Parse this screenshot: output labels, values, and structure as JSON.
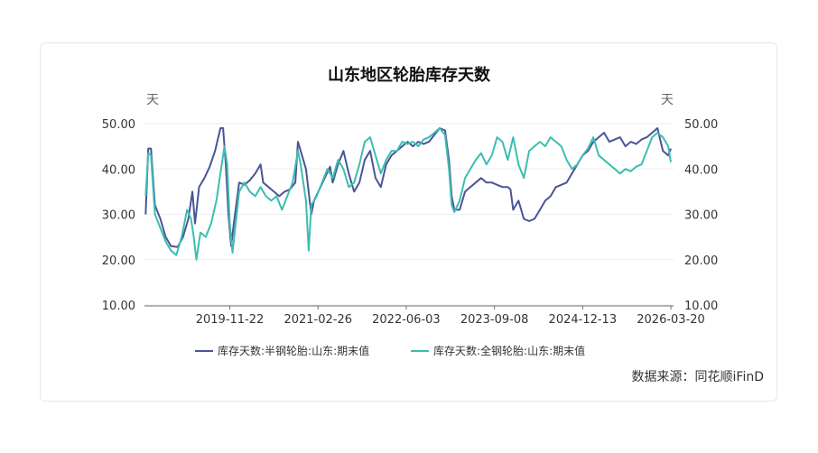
{
  "chart_data": {
    "type": "line",
    "title": "山东地区轮胎库存天数",
    "y_unit_left": "天",
    "y_unit_right": "天",
    "ylim": [
      10,
      50
    ],
    "yticks": [
      "50.00",
      "40.00",
      "30.00",
      "20.00",
      "10.00"
    ],
    "xticks": [
      "2019-11-22",
      "2021-02-26",
      "2022-06-03",
      "2023-09-08",
      "2024-12-13",
      "2026-03-20"
    ],
    "xlim": [
      "2018-09-01",
      "2026-04-03"
    ],
    "grid": true,
    "legend_position": "bottom",
    "source": "数据来源：同花顺iFinD",
    "series": [
      {
        "name": "库存天数:半钢轮胎:山东:期末值",
        "color": "#4a5596",
        "points": [
          [
            "2018-09-07",
            30
          ],
          [
            "2018-09-21",
            44.5
          ],
          [
            "2018-10-05",
            44.5
          ],
          [
            "2018-10-26",
            32
          ],
          [
            "2018-11-23",
            29
          ],
          [
            "2018-12-21",
            25
          ],
          [
            "2019-01-18",
            23
          ],
          [
            "2019-02-22",
            22.8
          ],
          [
            "2019-03-22",
            25
          ],
          [
            "2019-04-19",
            29
          ],
          [
            "2019-05-10",
            35
          ],
          [
            "2019-05-24",
            28
          ],
          [
            "2019-06-14",
            36
          ],
          [
            "2019-07-12",
            38
          ],
          [
            "2019-08-09",
            40.5
          ],
          [
            "2019-09-06",
            44
          ],
          [
            "2019-10-04",
            49
          ],
          [
            "2019-10-18",
            49
          ],
          [
            "2019-11-01",
            41
          ],
          [
            "2019-11-15",
            30
          ],
          [
            "2019-11-29",
            23
          ],
          [
            "2019-12-13",
            28
          ],
          [
            "2020-01-10",
            37
          ],
          [
            "2020-02-07",
            36.5
          ],
          [
            "2020-03-06",
            37.5
          ],
          [
            "2020-04-03",
            39
          ],
          [
            "2020-05-01",
            41
          ],
          [
            "2020-05-15",
            37
          ],
          [
            "2020-06-12",
            36
          ],
          [
            "2020-07-10",
            35
          ],
          [
            "2020-08-07",
            34
          ],
          [
            "2020-09-04",
            35
          ],
          [
            "2020-10-02",
            35.5
          ],
          [
            "2020-10-30",
            37
          ],
          [
            "2020-11-13",
            46
          ],
          [
            "2020-11-27",
            44
          ],
          [
            "2020-12-25",
            40
          ],
          [
            "2021-01-22",
            30
          ],
          [
            "2021-02-05",
            33
          ],
          [
            "2021-03-05",
            35.5
          ],
          [
            "2021-04-02",
            38
          ],
          [
            "2021-04-30",
            40.5
          ],
          [
            "2021-05-14",
            37
          ],
          [
            "2021-06-11",
            41
          ],
          [
            "2021-07-09",
            44
          ],
          [
            "2021-08-06",
            39
          ],
          [
            "2021-09-03",
            35
          ],
          [
            "2021-10-01",
            37
          ],
          [
            "2021-10-29",
            42
          ],
          [
            "2021-11-26",
            44
          ],
          [
            "2021-12-24",
            38
          ],
          [
            "2022-01-21",
            36
          ],
          [
            "2022-02-18",
            41
          ],
          [
            "2022-03-18",
            43
          ],
          [
            "2022-04-15",
            44
          ],
          [
            "2022-05-13",
            45
          ],
          [
            "2022-06-10",
            46
          ],
          [
            "2022-07-08",
            45
          ],
          [
            "2022-08-05",
            46
          ],
          [
            "2022-09-02",
            45.5
          ],
          [
            "2022-09-30",
            46
          ],
          [
            "2022-10-28",
            47.5
          ],
          [
            "2022-11-25",
            49
          ],
          [
            "2022-12-23",
            48.5
          ],
          [
            "2023-01-13",
            42
          ],
          [
            "2023-01-27",
            34
          ],
          [
            "2023-02-10",
            31
          ],
          [
            "2023-03-10",
            31
          ],
          [
            "2023-04-07",
            35
          ],
          [
            "2023-05-05",
            36
          ],
          [
            "2023-06-02",
            37
          ],
          [
            "2023-06-30",
            38
          ],
          [
            "2023-07-28",
            37
          ],
          [
            "2023-08-25",
            37
          ],
          [
            "2023-09-22",
            36.5
          ],
          [
            "2023-10-20",
            36
          ],
          [
            "2023-11-17",
            36
          ],
          [
            "2023-12-01",
            35.5
          ],
          [
            "2023-12-15",
            31
          ],
          [
            "2024-01-12",
            33
          ],
          [
            "2024-02-09",
            29
          ],
          [
            "2024-03-08",
            28.5
          ],
          [
            "2024-04-05",
            29
          ],
          [
            "2024-05-03",
            31
          ],
          [
            "2024-05-31",
            33
          ],
          [
            "2024-06-28",
            34
          ],
          [
            "2024-07-26",
            36
          ],
          [
            "2024-08-23",
            36.5
          ],
          [
            "2024-09-20",
            37
          ],
          [
            "2024-10-18",
            39
          ],
          [
            "2024-11-15",
            41
          ],
          [
            "2024-12-13",
            43
          ],
          [
            "2025-01-10",
            44
          ],
          [
            "2025-02-07",
            46
          ],
          [
            "2025-03-07",
            47
          ],
          [
            "2025-04-04",
            48
          ],
          [
            "2025-05-02",
            46
          ],
          [
            "2025-05-30",
            46.5
          ],
          [
            "2025-06-27",
            47
          ],
          [
            "2025-07-25",
            45
          ],
          [
            "2025-08-22",
            46
          ],
          [
            "2025-09-19",
            45.5
          ],
          [
            "2025-10-17",
            46.5
          ],
          [
            "2025-11-14",
            47
          ],
          [
            "2025-12-12",
            48
          ],
          [
            "2026-01-09",
            49
          ],
          [
            "2026-02-06",
            44
          ],
          [
            "2026-03-06",
            43
          ],
          [
            "2026-03-20",
            44.5
          ]
        ]
      },
      {
        "name": "库存天数:全钢轮胎:山东:期末值",
        "color": "#3dbdb1",
        "points": [
          [
            "2018-09-07",
            34
          ],
          [
            "2018-09-21",
            43.5
          ],
          [
            "2018-10-05",
            43
          ],
          [
            "2018-10-26",
            30
          ],
          [
            "2018-11-23",
            27
          ],
          [
            "2018-12-21",
            24
          ],
          [
            "2019-01-18",
            22
          ],
          [
            "2019-02-15",
            21
          ],
          [
            "2019-03-15",
            25
          ],
          [
            "2019-04-12",
            31
          ],
          [
            "2019-05-03",
            29
          ],
          [
            "2019-05-17",
            25
          ],
          [
            "2019-05-31",
            20
          ],
          [
            "2019-06-21",
            26
          ],
          [
            "2019-07-19",
            25
          ],
          [
            "2019-08-16",
            28
          ],
          [
            "2019-09-13",
            33
          ],
          [
            "2019-10-11",
            41
          ],
          [
            "2019-10-25",
            45
          ],
          [
            "2019-11-08",
            41
          ],
          [
            "2019-11-22",
            28
          ],
          [
            "2019-12-06",
            21.5
          ],
          [
            "2019-12-20",
            27
          ],
          [
            "2020-01-10",
            35
          ],
          [
            "2020-02-07",
            37
          ],
          [
            "2020-03-06",
            35
          ],
          [
            "2020-04-03",
            34
          ],
          [
            "2020-05-01",
            36
          ],
          [
            "2020-05-29",
            34
          ],
          [
            "2020-06-26",
            33
          ],
          [
            "2020-07-24",
            34
          ],
          [
            "2020-08-21",
            31
          ],
          [
            "2020-09-18",
            34
          ],
          [
            "2020-10-16",
            37
          ],
          [
            "2020-11-13",
            44
          ],
          [
            "2020-11-27",
            41
          ],
          [
            "2020-12-25",
            33
          ],
          [
            "2021-01-08",
            22
          ],
          [
            "2021-01-22",
            32
          ],
          [
            "2021-02-19",
            34
          ],
          [
            "2021-03-19",
            37
          ],
          [
            "2021-04-16",
            40
          ],
          [
            "2021-05-14",
            38
          ],
          [
            "2021-06-11",
            42
          ],
          [
            "2021-07-09",
            40
          ],
          [
            "2021-08-06",
            36
          ],
          [
            "2021-09-03",
            37
          ],
          [
            "2021-10-01",
            41
          ],
          [
            "2021-10-29",
            46
          ],
          [
            "2021-11-26",
            47
          ],
          [
            "2021-12-24",
            43
          ],
          [
            "2022-01-21",
            39
          ],
          [
            "2022-02-18",
            42
          ],
          [
            "2022-03-18",
            44
          ],
          [
            "2022-04-15",
            44
          ],
          [
            "2022-05-13",
            46
          ],
          [
            "2022-06-10",
            45.5
          ],
          [
            "2022-07-08",
            46
          ],
          [
            "2022-08-05",
            45
          ],
          [
            "2022-09-02",
            46.5
          ],
          [
            "2022-09-30",
            47
          ],
          [
            "2022-10-28",
            48
          ],
          [
            "2022-11-25",
            49
          ],
          [
            "2022-12-23",
            47.5
          ],
          [
            "2023-01-13",
            40
          ],
          [
            "2023-01-27",
            32
          ],
          [
            "2023-02-10",
            30.5
          ],
          [
            "2023-03-10",
            33
          ],
          [
            "2023-04-07",
            38
          ],
          [
            "2023-05-05",
            40
          ],
          [
            "2023-06-02",
            42
          ],
          [
            "2023-06-30",
            43.5
          ],
          [
            "2023-07-28",
            41
          ],
          [
            "2023-08-25",
            43
          ],
          [
            "2023-09-22",
            47
          ],
          [
            "2023-10-20",
            46
          ],
          [
            "2023-11-17",
            42
          ],
          [
            "2023-12-15",
            47
          ],
          [
            "2024-01-12",
            41
          ],
          [
            "2024-02-09",
            38
          ],
          [
            "2024-03-08",
            44
          ],
          [
            "2024-04-05",
            45
          ],
          [
            "2024-05-03",
            46
          ],
          [
            "2024-05-31",
            45
          ],
          [
            "2024-06-28",
            47
          ],
          [
            "2024-07-26",
            46
          ],
          [
            "2024-08-23",
            45
          ],
          [
            "2024-09-20",
            42
          ],
          [
            "2024-10-18",
            40
          ],
          [
            "2024-11-15",
            41
          ],
          [
            "2024-12-13",
            43
          ],
          [
            "2025-01-10",
            44.5
          ],
          [
            "2025-02-07",
            47
          ],
          [
            "2025-03-07",
            43
          ],
          [
            "2025-04-04",
            42
          ],
          [
            "2025-05-02",
            41
          ],
          [
            "2025-05-30",
            40
          ],
          [
            "2025-06-27",
            39
          ],
          [
            "2025-07-25",
            40
          ],
          [
            "2025-08-22",
            39.5
          ],
          [
            "2025-09-19",
            40.5
          ],
          [
            "2025-10-17",
            41
          ],
          [
            "2025-11-14",
            44
          ],
          [
            "2025-12-12",
            47
          ],
          [
            "2026-01-09",
            48
          ],
          [
            "2026-02-06",
            47
          ],
          [
            "2026-03-06",
            45
          ],
          [
            "2026-03-20",
            41.5
          ]
        ]
      }
    ]
  }
}
